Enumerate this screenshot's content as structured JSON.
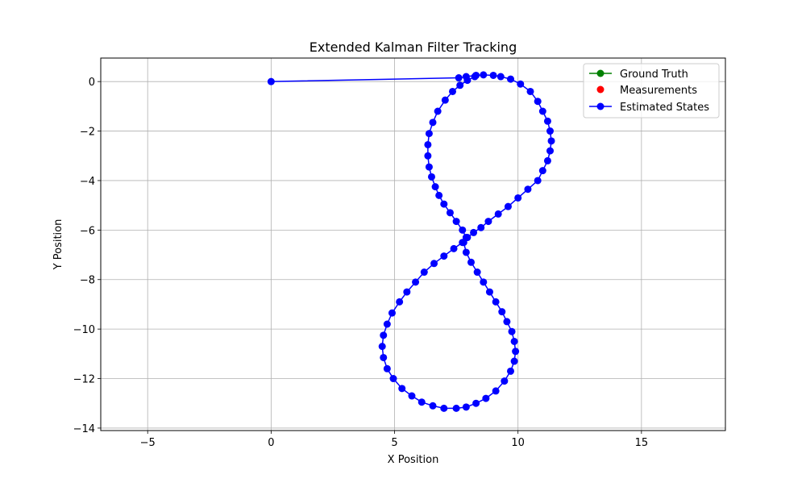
{
  "chart_data": {
    "type": "line",
    "title": "Extended Kalman Filter Tracking",
    "xlabel": "X Position",
    "ylabel": "Y Position",
    "xlim": [
      -6.9,
      18.4
    ],
    "ylim": [
      -14.1,
      0.95
    ],
    "xticks": [
      -5,
      0,
      5,
      10,
      15
    ],
    "yticks": [
      0,
      -2,
      -4,
      -6,
      -8,
      -10,
      -12,
      -14
    ],
    "xtick_labels": [
      "−5",
      "0",
      "5",
      "10",
      "15"
    ],
    "ytick_labels": [
      "0",
      "−2",
      "−4",
      "−6",
      "−8",
      "−10",
      "−12",
      "−14"
    ],
    "grid": true,
    "legend_position": "top-right",
    "series": [
      {
        "name": "Ground Truth",
        "color": "#008000",
        "marker": "circle",
        "line": true,
        "x": [],
        "y": []
      },
      {
        "name": "Measurements",
        "color": "#ff0000",
        "marker": "circle",
        "line": false,
        "x": [],
        "y": []
      },
      {
        "name": "Estimated States",
        "color": "#0000ff",
        "marker": "circle",
        "line": true,
        "x": [
          0,
          7.6,
          7.9,
          8.3,
          8.6,
          9.0,
          9.3,
          9.7,
          10.1,
          10.5,
          10.8,
          11.0,
          11.2,
          11.3,
          11.35,
          11.3,
          11.2,
          11.0,
          10.8,
          10.4,
          10.0,
          9.6,
          9.2,
          8.8,
          8.5,
          8.2,
          7.95,
          7.8,
          7.9,
          8.1,
          8.35,
          8.6,
          8.85,
          9.1,
          9.35,
          9.55,
          9.75,
          9.85,
          9.9,
          9.85,
          9.7,
          9.45,
          9.1,
          8.7,
          8.3,
          7.9,
          7.5,
          7.0,
          6.55,
          6.1,
          5.7,
          5.3,
          4.95,
          4.7,
          4.55,
          4.5,
          4.55,
          4.7,
          4.9,
          5.2,
          5.5,
          5.85,
          6.2,
          6.6,
          7.0,
          7.4,
          7.75,
          7.9,
          7.75,
          7.5,
          7.25,
          7.0,
          6.8,
          6.65,
          6.5,
          6.4,
          6.35,
          6.35,
          6.4,
          6.55,
          6.75,
          7.05,
          7.35,
          7.65,
          7.95,
          8.25
        ],
        "y": [
          0,
          0.15,
          0.2,
          0.25,
          0.27,
          0.25,
          0.2,
          0.1,
          -0.1,
          -0.4,
          -0.8,
          -1.2,
          -1.6,
          -2.0,
          -2.4,
          -2.8,
          -3.2,
          -3.6,
          -4.0,
          -4.35,
          -4.7,
          -5.05,
          -5.35,
          -5.65,
          -5.9,
          -6.1,
          -6.3,
          -6.5,
          -6.9,
          -7.3,
          -7.7,
          -8.1,
          -8.5,
          -8.9,
          -9.3,
          -9.7,
          -10.1,
          -10.5,
          -10.9,
          -11.3,
          -11.7,
          -12.1,
          -12.5,
          -12.8,
          -13.0,
          -13.15,
          -13.2,
          -13.2,
          -13.1,
          -12.95,
          -12.7,
          -12.4,
          -12.0,
          -11.6,
          -11.15,
          -10.7,
          -10.25,
          -9.8,
          -9.35,
          -8.9,
          -8.5,
          -8.1,
          -7.7,
          -7.35,
          -7.05,
          -6.75,
          -6.5,
          -6.3,
          -6.0,
          -5.65,
          -5.3,
          -4.95,
          -4.6,
          -4.25,
          -3.85,
          -3.45,
          -3.0,
          -2.55,
          -2.1,
          -1.65,
          -1.2,
          -0.75,
          -0.4,
          -0.15,
          0.05,
          0.2
        ]
      }
    ]
  }
}
